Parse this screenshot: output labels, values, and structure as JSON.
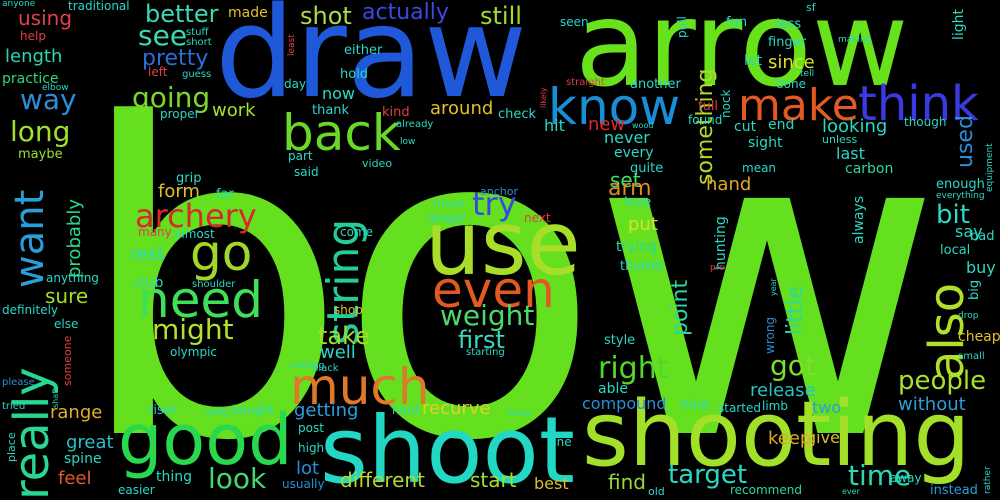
{
  "words": [
    {
      "text": "bow",
      "color": "#65e01f"
    },
    {
      "text": "arrow",
      "color": "#68e21a"
    },
    {
      "text": "draw",
      "color": "#1f58d8"
    },
    {
      "text": "shooting",
      "color": "#a3e02a"
    },
    {
      "text": "shoot",
      "color": "#22d8c4"
    },
    {
      "text": "good",
      "color": "#29d84c"
    },
    {
      "text": "use",
      "color": "#a8de2a"
    },
    {
      "text": "know",
      "color": "#1a8ed4"
    },
    {
      "text": "think",
      "color": "#3a3ae0"
    },
    {
      "text": "make",
      "color": "#e05a22"
    },
    {
      "text": "back",
      "color": "#6ad82a"
    },
    {
      "text": "need",
      "color": "#3ee05a"
    },
    {
      "text": "go",
      "color": "#a0d82a"
    },
    {
      "text": "even",
      "color": "#e05a22"
    },
    {
      "text": "much",
      "color": "#e0782a"
    },
    {
      "text": "really",
      "color": "#28d890"
    },
    {
      "text": "also",
      "color": "#b2e02a"
    },
    {
      "text": "string",
      "color": "#24cc98"
    },
    {
      "text": "want",
      "color": "#2a9ed8"
    },
    {
      "text": "archery",
      "color": "#d8282a"
    },
    {
      "text": "try",
      "color": "#3a48e0"
    },
    {
      "text": "going",
      "color": "#7ad82a"
    },
    {
      "text": "pretty",
      "color": "#2a6ed8"
    },
    {
      "text": "see",
      "color": "#3ad8b4"
    },
    {
      "text": "might",
      "color": "#b4e02a"
    },
    {
      "text": "way",
      "color": "#2a8ed8"
    },
    {
      "text": "long",
      "color": "#a0e02a"
    },
    {
      "text": "weight",
      "color": "#4ad86a"
    },
    {
      "text": "right",
      "color": "#52d82a"
    },
    {
      "text": "people",
      "color": "#a8e02a"
    },
    {
      "text": "something",
      "color": "#b0d82a"
    },
    {
      "text": "look",
      "color": "#46d86a"
    },
    {
      "text": "time",
      "color": "#2ad8b4"
    },
    {
      "text": "target",
      "color": "#2ad8c4"
    },
    {
      "text": "got",
      "color": "#7ae02a"
    },
    {
      "text": "take",
      "color": "#a0e02a"
    },
    {
      "text": "first",
      "color": "#3ad8c4"
    },
    {
      "text": "still",
      "color": "#a8d82a"
    },
    {
      "text": "shot",
      "color": "#b0d84a"
    },
    {
      "text": "actually",
      "color": "#3a4ae0"
    },
    {
      "text": "better",
      "color": "#3ad8b4"
    },
    {
      "text": "bit",
      "color": "#2ad8c4"
    },
    {
      "text": "used",
      "color": "#2a8ed8"
    },
    {
      "text": "point",
      "color": "#28d8a0"
    },
    {
      "text": "little",
      "color": "#2ad8a0"
    },
    {
      "text": "form",
      "color": "#e0c02a"
    },
    {
      "text": "set",
      "color": "#3ae06a"
    },
    {
      "text": "arm",
      "color": "#e08a2a"
    },
    {
      "text": "hand",
      "color": "#e0a82a"
    },
    {
      "text": "sure",
      "color": "#a0e02a"
    },
    {
      "text": "probably",
      "color": "#2ad88a"
    },
    {
      "text": "recurve",
      "color": "#e0d02a"
    },
    {
      "text": "range",
      "color": "#e0b02a"
    },
    {
      "text": "getting",
      "color": "#2a9ed8"
    },
    {
      "text": "release",
      "color": "#2ac0c4"
    },
    {
      "text": "without",
      "color": "#2a9ed8"
    },
    {
      "text": "compound",
      "color": "#2a8ed8"
    },
    {
      "text": "different",
      "color": "#b4d82a"
    },
    {
      "text": "start",
      "color": "#a0e02a"
    },
    {
      "text": "find",
      "color": "#9ad83a"
    },
    {
      "text": "keep",
      "color": "#d8a82a"
    },
    {
      "text": "great",
      "color": "#2ac0c4"
    },
    {
      "text": "feel",
      "color": "#e05a2a"
    },
    {
      "text": "lot",
      "color": "#2a8ed8"
    },
    {
      "text": "well",
      "color": "#2ad8c4"
    },
    {
      "text": "rest",
      "color": "#2ad8c4"
    },
    {
      "text": "around",
      "color": "#e0c02a"
    },
    {
      "text": "work",
      "color": "#a8e02a"
    },
    {
      "text": "length",
      "color": "#2ad8b4"
    },
    {
      "text": "using",
      "color": "#e0404a"
    },
    {
      "text": "practice",
      "color": "#2ad880"
    },
    {
      "text": "maybe",
      "color": "#9ae02a"
    },
    {
      "text": "since",
      "color": "#d8e02a"
    },
    {
      "text": "looking",
      "color": "#2ad8c4"
    },
    {
      "text": "last",
      "color": "#2ad8c4"
    },
    {
      "text": "carbon",
      "color": "#2ad8a0"
    },
    {
      "text": "enough",
      "color": "#2ad8c4"
    },
    {
      "text": "say",
      "color": "#2ad8c4"
    },
    {
      "text": "buy",
      "color": "#2ad8c4"
    },
    {
      "text": "bad",
      "color": "#2ad8c4"
    },
    {
      "text": "local",
      "color": "#2ad8c4"
    },
    {
      "text": "big",
      "color": "#2ad8c4"
    },
    {
      "text": "cheap",
      "color": "#e0c02a"
    },
    {
      "text": "two",
      "color": "#2a9ed8"
    },
    {
      "text": "give",
      "color": "#d8c02a"
    },
    {
      "text": "instead",
      "color": "#2a9ed8"
    },
    {
      "text": "recommend",
      "color": "#2ad8a0"
    },
    {
      "text": "best",
      "color": "#d8c02a"
    },
    {
      "text": "new",
      "color": "#e0282a"
    },
    {
      "text": "hit",
      "color": "#2ad8c4"
    },
    {
      "text": "never",
      "color": "#2ad8c4"
    },
    {
      "text": "every",
      "color": "#2ad8c4"
    },
    {
      "text": "quite",
      "color": "#2ad8c4"
    },
    {
      "text": "love",
      "color": "#2ad8c4"
    },
    {
      "text": "put",
      "color": "#d8e02a"
    },
    {
      "text": "trying",
      "color": "#2ad8a0"
    },
    {
      "text": "thumb",
      "color": "#2ad8c4"
    },
    {
      "text": "able",
      "color": "#2ad8c4"
    },
    {
      "text": "nice",
      "color": "#2ad8c4"
    },
    {
      "text": "style",
      "color": "#2ad8c4"
    },
    {
      "text": "sight",
      "color": "#2ad8c4"
    },
    {
      "text": "cut",
      "color": "#2ad8c4"
    },
    {
      "text": "end",
      "color": "#2ad8c4"
    },
    {
      "text": "always",
      "color": "#2ad8c4"
    },
    {
      "text": "hunting",
      "color": "#2ad8c4"
    },
    {
      "text": "let",
      "color": "#2ad8c4"
    },
    {
      "text": "finger",
      "color": "#2ad8c4"
    },
    {
      "text": "less",
      "color": "#2ad8c4"
    },
    {
      "text": "fun",
      "color": "#2ad8c4"
    },
    {
      "text": "seen",
      "color": "#2ad8c4"
    },
    {
      "text": "pull",
      "color": "#2ad8c4"
    },
    {
      "text": "light",
      "color": "#2ad8c4"
    },
    {
      "text": "left",
      "color": "#e04040"
    },
    {
      "text": "help",
      "color": "#e04040"
    },
    {
      "text": "made",
      "color": "#e0c02a"
    },
    {
      "text": "stuff",
      "color": "#2ad8c4"
    },
    {
      "text": "short",
      "color": "#2ad8c4"
    },
    {
      "text": "guess",
      "color": "#2ad8c4"
    },
    {
      "text": "now",
      "color": "#2ad8c4"
    },
    {
      "text": "hold",
      "color": "#2ad8c4"
    },
    {
      "text": "either",
      "color": "#2ad8c4"
    },
    {
      "text": "thank",
      "color": "#2ad8c4"
    },
    {
      "text": "day",
      "color": "#2ad8c4"
    },
    {
      "text": "kind",
      "color": "#e04040"
    },
    {
      "text": "already",
      "color": "#2ad8c4"
    },
    {
      "text": "check",
      "color": "#2ad8c4"
    },
    {
      "text": "another",
      "color": "#2ad8c4"
    },
    {
      "text": "straight",
      "color": "#e04040"
    },
    {
      "text": "found",
      "color": "#2ad8c4"
    },
    {
      "text": "full",
      "color": "#e04040"
    },
    {
      "text": "nock",
      "color": "#2ad8c4"
    },
    {
      "text": "done",
      "color": "#2ad8c4"
    },
    {
      "text": "tell",
      "color": "#2ad8c4"
    },
    {
      "text": "though",
      "color": "#2ad8c4"
    },
    {
      "text": "unless",
      "color": "#2ad8c4"
    },
    {
      "text": "mean",
      "color": "#2ad8c4"
    },
    {
      "text": "grip",
      "color": "#2ad8c4"
    },
    {
      "text": "far",
      "color": "#2ad8c4"
    },
    {
      "text": "part",
      "color": "#2ad8c4"
    },
    {
      "text": "said",
      "color": "#2ad8c4"
    },
    {
      "text": "video",
      "color": "#2ad8c4"
    },
    {
      "text": "low",
      "color": "#2ad8c4"
    },
    {
      "text": "move",
      "color": "#2ad8c4"
    },
    {
      "text": "anchor",
      "color": "#2a8ed8"
    },
    {
      "text": "longer",
      "color": "#2ad8c4"
    },
    {
      "text": "next",
      "color": "#e04040"
    },
    {
      "text": "come",
      "color": "#2ad8c4"
    },
    {
      "text": "club",
      "color": "#2ad8c4"
    },
    {
      "text": "many",
      "color": "#e04040"
    },
    {
      "text": "almost",
      "color": "#2ad8c4"
    },
    {
      "text": "shoulder",
      "color": "#2ad8c4"
    },
    {
      "text": "olympic",
      "color": "#2ad8c4"
    },
    {
      "text": "shop",
      "color": "#e0c02a"
    },
    {
      "text": "nothing",
      "color": "#2ad8c4"
    },
    {
      "text": "black",
      "color": "#2ad8c4"
    },
    {
      "text": "starting",
      "color": "#2ad8c4"
    },
    {
      "text": "post",
      "color": "#2ad8c4"
    },
    {
      "text": "high",
      "color": "#2ad8c4"
    },
    {
      "text": "usually",
      "color": "#2a8ed8"
    },
    {
      "text": "riser",
      "color": "#2ad8c4"
    },
    {
      "text": "side",
      "color": "#2ad8c4"
    },
    {
      "text": "bought",
      "color": "#2ad8c4"
    },
    {
      "text": "thing",
      "color": "#2ad8c4"
    },
    {
      "text": "easier",
      "color": "#2ad8c4"
    },
    {
      "text": "hard",
      "color": "#2ad8c4"
    },
    {
      "text": "line",
      "color": "#2ad8c4"
    },
    {
      "text": "learn",
      "color": "#2ad8c4"
    },
    {
      "text": "started",
      "color": "#2ad8c4"
    },
    {
      "text": "limb",
      "color": "#2ad8c4"
    },
    {
      "text": "wrong",
      "color": "#2a8ed8"
    },
    {
      "text": "away",
      "color": "#2ad8c4"
    },
    {
      "text": "old",
      "color": "#2ad8c4"
    },
    {
      "text": "proper",
      "color": "#2ad8c4"
    },
    {
      "text": "spine",
      "color": "#2ad8c4"
    },
    {
      "text": "definitely",
      "color": "#2ad8c4"
    },
    {
      "text": "anything",
      "color": "#2ad8c4"
    },
    {
      "text": "someone",
      "color": "#e04040"
    },
    {
      "text": "else",
      "color": "#2ad8c4"
    },
    {
      "text": "place",
      "color": "#2ad8c4"
    },
    {
      "text": "tried",
      "color": "#2ad8c4"
    },
    {
      "text": "please",
      "color": "#2a8ed8"
    },
    {
      "text": "traditional",
      "color": "#2ad8c4"
    },
    {
      "text": "anyone",
      "color": "#2ad8c4"
    },
    {
      "text": "elbow",
      "color": "#2ad8c4"
    },
    {
      "text": "sf",
      "color": "#2ad8c4"
    },
    {
      "text": "making",
      "color": "#2ad8c4"
    },
    {
      "text": "equipment",
      "color": "#2ad8c4"
    },
    {
      "text": "everything",
      "color": "#2ad8c4"
    },
    {
      "text": "rather",
      "color": "#2ad8c4"
    },
    {
      "text": "small",
      "color": "#2ad8c4"
    },
    {
      "text": "drop",
      "color": "#2ad8c4"
    },
    {
      "text": "year",
      "color": "#2ad8c4"
    },
    {
      "text": "pro",
      "color": "#e04040"
    },
    {
      "text": "wood",
      "color": "#2ad8c4"
    },
    {
      "text": "least",
      "color": "#e04040"
    },
    {
      "text": "likely",
      "color": "#e04040"
    },
    {
      "text": "ever",
      "color": "#2ad8c4"
    },
    {
      "text": "shaft",
      "color": "#2ad8c4"
    }
  ]
}
